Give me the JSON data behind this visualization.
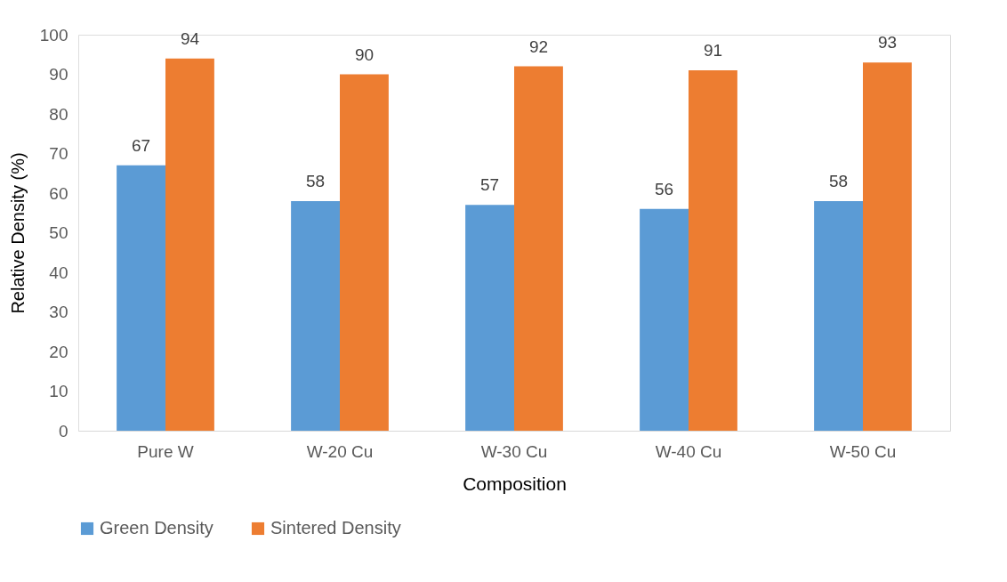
{
  "chart_data": {
    "type": "bar",
    "xlabel": "Composition",
    "ylabel": "Relative Density (%)",
    "categories": [
      "Pure W",
      "W-20 Cu",
      "W-30 Cu",
      "W-40 Cu",
      "W-50 Cu"
    ],
    "series": [
      {
        "name": "Green Density",
        "color": "#5b9bd5",
        "values": [
          67,
          58,
          57,
          56,
          58
        ]
      },
      {
        "name": "Sintered Density",
        "color": "#ed7d31",
        "values": [
          94,
          90,
          92,
          91,
          93
        ]
      }
    ],
    "ylim": [
      0,
      100
    ],
    "yticks": [
      0,
      10,
      20,
      30,
      40,
      50,
      60,
      70,
      80,
      90,
      100
    ],
    "grid": false,
    "legend": "bottom",
    "data_labels": true
  }
}
